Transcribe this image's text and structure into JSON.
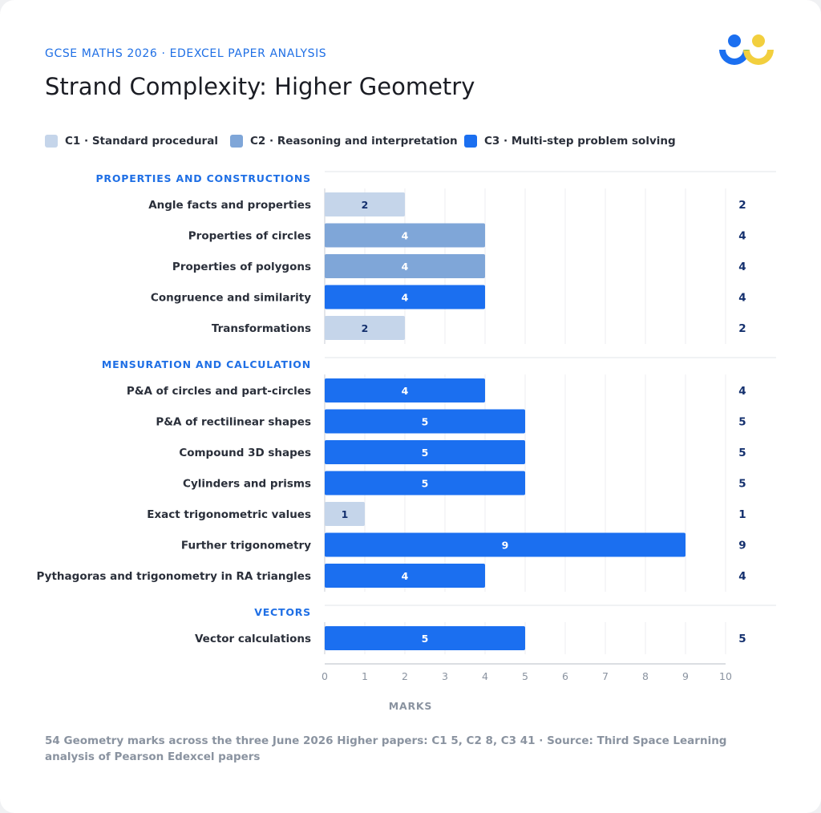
{
  "header": {
    "eyebrow": "GCSE MATHS 2026 · EDEXCEL PAPER ANALYSIS",
    "title": "Strand Complexity: Higher Geometry"
  },
  "legend": [
    {
      "label": "C1 · Standard procedural",
      "color": "#c5d5ea"
    },
    {
      "label": "C2 · Reasoning and interpretation",
      "color": "#7fa6d8"
    },
    {
      "label": "C3 · Multi-step problem solving",
      "color": "#1b6ff0"
    }
  ],
  "colors": {
    "C1": "#c5d5ea",
    "C2": "#7fa6d8",
    "C3": "#1b6ff0",
    "section_heading": "#1f6fe5",
    "total_text": "#14306e",
    "label_text": "#2a2f3a",
    "axis_text": "#8a93a0"
  },
  "chart_data": {
    "type": "bar",
    "orientation": "horizontal",
    "xlabel": "MARKS",
    "xlim": [
      0,
      10
    ],
    "xticks": [
      0,
      1,
      2,
      3,
      4,
      5,
      6,
      7,
      8,
      9,
      10
    ],
    "grid": true,
    "legend_position": "top",
    "groups": [
      {
        "name": "PROPERTIES AND CONSTRUCTIONS",
        "rows": [
          {
            "label": "Angle facts and properties",
            "value": 2,
            "level": "C1"
          },
          {
            "label": "Properties of circles",
            "value": 4,
            "level": "C2"
          },
          {
            "label": "Properties of polygons",
            "value": 4,
            "level": "C2"
          },
          {
            "label": "Congruence and similarity",
            "value": 4,
            "level": "C3"
          },
          {
            "label": "Transformations",
            "value": 2,
            "level": "C1"
          }
        ]
      },
      {
        "name": "MENSURATION AND CALCULATION",
        "rows": [
          {
            "label": "P&A of circles and part-circles",
            "value": 4,
            "level": "C3"
          },
          {
            "label": "P&A of rectilinear shapes",
            "value": 5,
            "level": "C3"
          },
          {
            "label": "Compound 3D shapes",
            "value": 5,
            "level": "C3"
          },
          {
            "label": "Cylinders and prisms",
            "value": 5,
            "level": "C3"
          },
          {
            "label": "Exact trigonometric values",
            "value": 1,
            "level": "C1"
          },
          {
            "label": "Further trigonometry",
            "value": 9,
            "level": "C3"
          },
          {
            "label": "Pythagoras and trigonometry in RA triangles",
            "value": 4,
            "level": "C3"
          }
        ]
      },
      {
        "name": "VECTORS",
        "rows": [
          {
            "label": "Vector calculations",
            "value": 5,
            "level": "C3"
          }
        ]
      }
    ]
  },
  "footnote": "54 Geometry marks across the three June 2026 Higher papers: C1 5, C2 8, C3 41 · Source: Third Space Learning analysis of Pearson Edexcel papers"
}
